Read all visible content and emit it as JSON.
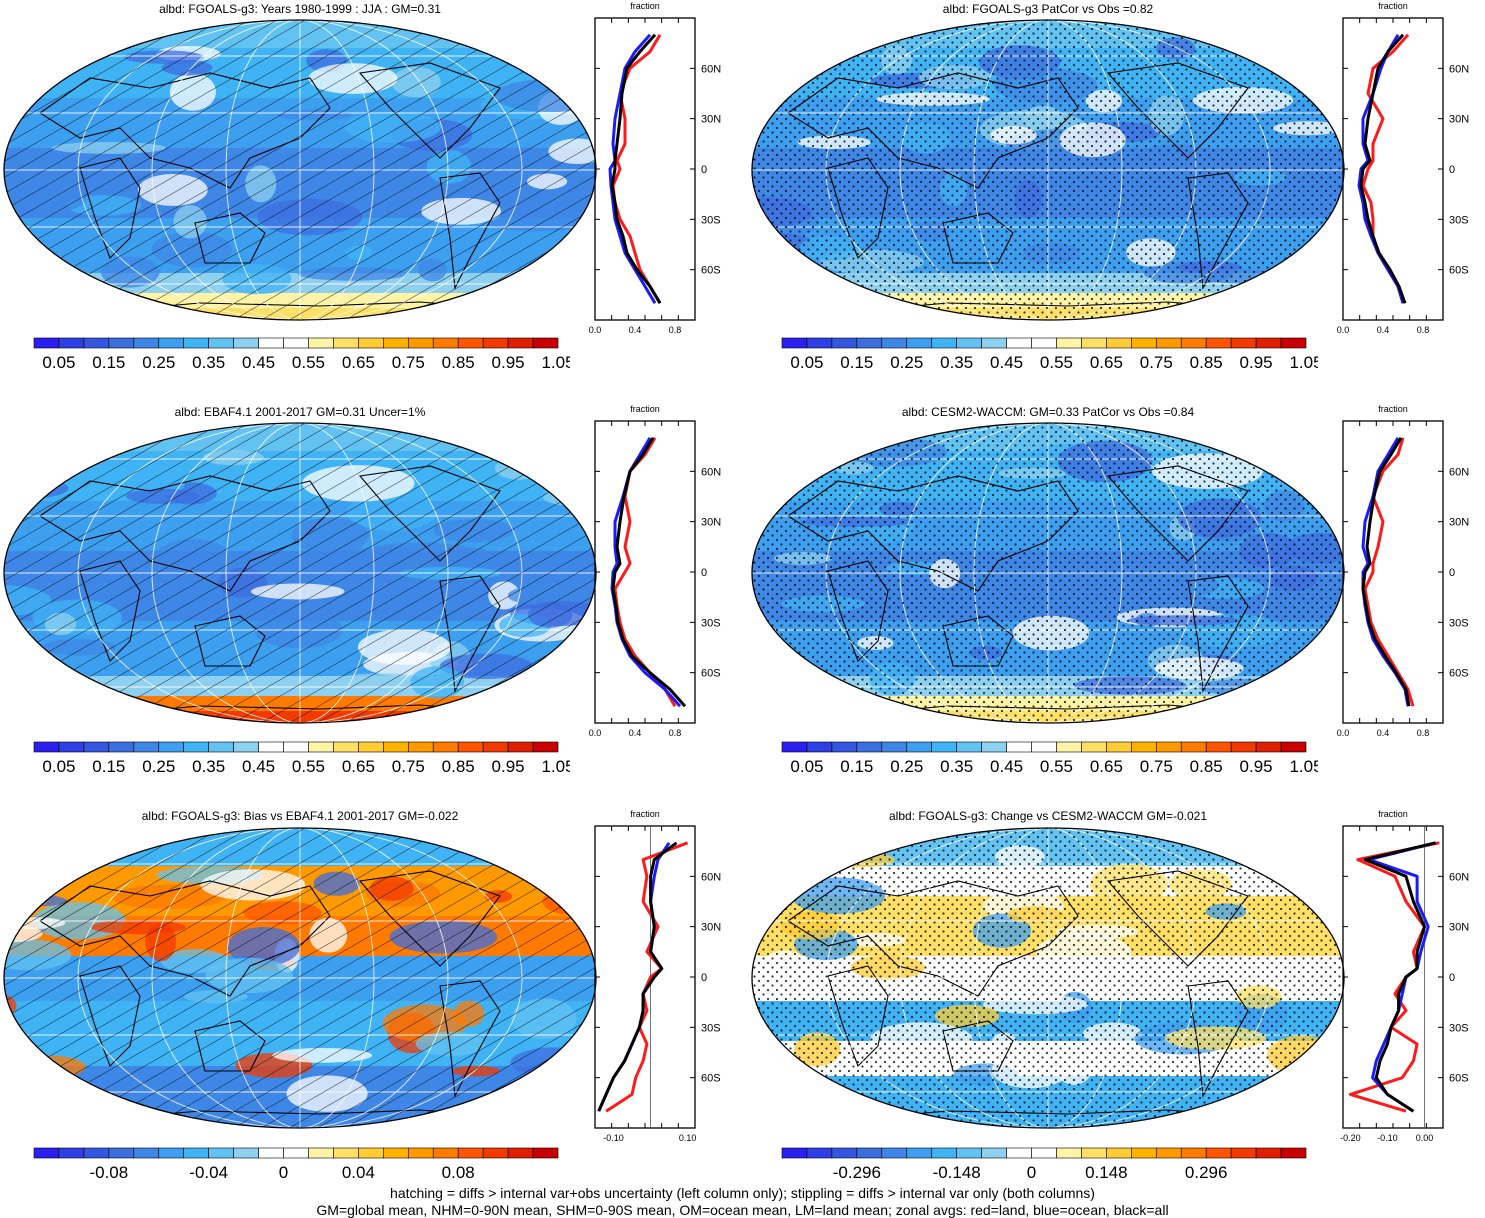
{
  "panels": [
    {
      "title": "albd: FGOALS-g3: Years 1980-1999 : JJA : GM=0.31",
      "pattern": "hatch",
      "kind": "abs",
      "variant": 0
    },
    {
      "title": "albd: FGOALS-g3 PatCor vs Obs =0.82",
      "pattern": "stipple",
      "kind": "abs",
      "variant": 1
    },
    {
      "title": "albd: EBAF4.1 2001-2017 GM=0.31 Uncer=1%",
      "pattern": "hatch",
      "kind": "abs",
      "variant": 2
    },
    {
      "title": "albd: CESM2-WACCM: GM=0.33 PatCor vs Obs =0.84",
      "pattern": "stipple",
      "kind": "abs",
      "variant": 3
    },
    {
      "title": "albd: FGOALS-g3: Bias vs EBAF4.1 2001-2017 GM=-0.022",
      "pattern": "hatch",
      "kind": "bias",
      "variant": 4
    },
    {
      "title": "albd: FGOALS-g3: Change vs CESM2-WACCM GM=-0.021",
      "pattern": "stipple",
      "kind": "change",
      "variant": 5
    }
  ],
  "colors": {
    "abs": [
      "#2b1ff0",
      "#2f3fe6",
      "#3557e0",
      "#3d6ee0",
      "#3f87e6",
      "#3d9ff0",
      "#40b3f5",
      "#62c3f2",
      "#8dd0ef",
      "#ffffff",
      "#ffffff",
      "#fff3a6",
      "#ffe066",
      "#ffcc33",
      "#ffb300",
      "#ff9900",
      "#ff7a00",
      "#ff5500",
      "#f23a00",
      "#e01f00",
      "#c80000"
    ],
    "div": [
      "#2b1ff0",
      "#2f3fe6",
      "#3557e0",
      "#3d6ee0",
      "#3f87e6",
      "#3d9ff0",
      "#40b3f5",
      "#62c3f2",
      "#8dd0ef",
      "#ffffff",
      "#ffffff",
      "#fff3a6",
      "#ffe066",
      "#ffcc33",
      "#ffb300",
      "#ff9900",
      "#ff7a00",
      "#ff5500",
      "#f23a00",
      "#e01f00",
      "#c80000"
    ],
    "land": "#ff1a1a",
    "ocean": "#1a1aff",
    "all": "#000000"
  },
  "colorbar_labels": {
    "abs": [
      "0.05",
      "0.15",
      "0.25",
      "0.35",
      "0.45",
      "0.55",
      "0.65",
      "0.75",
      "0.85",
      "0.95",
      "1.05"
    ],
    "bias": [
      "-0.08",
      "-0.04",
      "0",
      "0.04",
      "0.08"
    ],
    "change": [
      "-0.296",
      "-0.148",
      "0",
      "0.148",
      "0.296"
    ]
  },
  "zonal_axis": {
    "title": "fraction",
    "lat_labels": [
      "60N",
      "30N",
      "0",
      "30S",
      "60S"
    ],
    "x_labels_abs": [
      "0.0",
      "0.4",
      "0.8"
    ],
    "x_labels_bias": [
      "-0.10",
      "0.10"
    ],
    "x_labels_change": [
      "-0.20",
      "-0.10",
      "0.00"
    ]
  },
  "chart_data": [
    {
      "type": "heatmap",
      "title": "albd: FGOALS-g3: Years 1980-1999 : JJA : GM=0.31",
      "colorbar_ticks": [
        0.05,
        0.15,
        0.25,
        0.35,
        0.45,
        0.55,
        0.65,
        0.75,
        0.85,
        0.95,
        1.05
      ],
      "zonal": {
        "xlabel": "fraction",
        "xlim": [
          0,
          1
        ],
        "lat": [
          80,
          70,
          60,
          45,
          30,
          15,
          5,
          0,
          -10,
          -20,
          -30,
          -40,
          -50,
          -60,
          -70,
          -80
        ],
        "series": [
          {
            "name": "land",
            "values": [
              0.65,
              0.55,
              0.35,
              0.25,
              0.3,
              0.3,
              0.22,
              0.25,
              0.18,
              0.2,
              0.25,
              0.35,
              0.4,
              0.45,
              0.55,
              0.65
            ]
          },
          {
            "name": "ocean",
            "values": [
              0.55,
              0.4,
              0.3,
              0.25,
              0.2,
              0.18,
              0.2,
              0.15,
              0.16,
              0.18,
              0.2,
              0.25,
              0.3,
              0.4,
              0.5,
              0.6
            ]
          },
          {
            "name": "all",
            "values": [
              0.6,
              0.45,
              0.32,
              0.27,
              0.25,
              0.22,
              0.2,
              0.2,
              0.17,
              0.2,
              0.22,
              0.28,
              0.32,
              0.42,
              0.55,
              0.65
            ]
          }
        ]
      }
    },
    {
      "type": "heatmap",
      "title": "albd: FGOALS-g3 PatCor vs Obs =0.82",
      "colorbar_ticks": [
        0.05,
        0.15,
        0.25,
        0.35,
        0.45,
        0.55,
        0.65,
        0.75,
        0.85,
        0.95,
        1.05
      ],
      "zonal": {
        "xlabel": "fraction",
        "xlim": [
          0,
          1
        ],
        "lat": [
          80,
          70,
          60,
          45,
          30,
          15,
          5,
          0,
          -10,
          -20,
          -30,
          -40,
          -50,
          -60,
          -70,
          -80
        ],
        "series": [
          {
            "name": "land",
            "values": [
              0.65,
              0.5,
              0.3,
              0.25,
              0.4,
              0.3,
              0.3,
              0.25,
              0.2,
              0.28,
              0.3,
              0.3,
              0.35,
              0.45,
              0.55,
              0.6
            ]
          },
          {
            "name": "ocean",
            "values": [
              0.55,
              0.45,
              0.38,
              0.3,
              0.2,
              0.2,
              0.25,
              0.18,
              0.16,
              0.2,
              0.22,
              0.28,
              0.35,
              0.45,
              0.55,
              0.6
            ]
          },
          {
            "name": "all",
            "values": [
              0.6,
              0.45,
              0.35,
              0.3,
              0.25,
              0.22,
              0.27,
              0.2,
              0.18,
              0.22,
              0.25,
              0.3,
              0.36,
              0.47,
              0.56,
              0.62
            ]
          }
        ]
      }
    },
    {
      "type": "heatmap",
      "title": "albd: EBAF4.1 2001-2017 GM=0.31 Uncer=1%",
      "colorbar_ticks": [
        0.05,
        0.15,
        0.25,
        0.35,
        0.45,
        0.55,
        0.65,
        0.75,
        0.85,
        0.95,
        1.05
      ],
      "zonal": {
        "xlabel": "fraction",
        "xlim": [
          0,
          1
        ],
        "lat": [
          80,
          70,
          60,
          45,
          30,
          15,
          5,
          0,
          -10,
          -20,
          -30,
          -40,
          -50,
          -60,
          -70,
          -80
        ],
        "series": [
          {
            "name": "land",
            "values": [
              0.6,
              0.5,
              0.35,
              0.3,
              0.35,
              0.3,
              0.35,
              0.3,
              0.2,
              0.22,
              0.25,
              0.3,
              0.4,
              0.55,
              0.7,
              0.8
            ]
          },
          {
            "name": "ocean",
            "values": [
              0.55,
              0.45,
              0.35,
              0.28,
              0.2,
              0.2,
              0.22,
              0.18,
              0.17,
              0.2,
              0.22,
              0.27,
              0.35,
              0.5,
              0.7,
              0.85
            ]
          },
          {
            "name": "all",
            "values": [
              0.58,
              0.48,
              0.35,
              0.29,
              0.25,
              0.22,
              0.25,
              0.2,
              0.18,
              0.21,
              0.23,
              0.28,
              0.37,
              0.55,
              0.75,
              0.9
            ]
          }
        ]
      }
    },
    {
      "type": "heatmap",
      "title": "albd: CESM2-WACCM: GM=0.33 PatCor vs Obs =0.84",
      "colorbar_ticks": [
        0.05,
        0.15,
        0.25,
        0.35,
        0.45,
        0.55,
        0.65,
        0.75,
        0.85,
        0.95,
        1.05
      ],
      "zonal": {
        "xlabel": "fraction",
        "xlim": [
          0,
          1
        ],
        "lat": [
          80,
          70,
          60,
          45,
          30,
          15,
          5,
          0,
          -10,
          -20,
          -30,
          -40,
          -50,
          -60,
          -70,
          -80
        ],
        "series": [
          {
            "name": "land",
            "values": [
              0.6,
              0.55,
              0.4,
              0.3,
              0.4,
              0.35,
              0.3,
              0.3,
              0.22,
              0.25,
              0.28,
              0.35,
              0.45,
              0.55,
              0.65,
              0.7
            ]
          },
          {
            "name": "ocean",
            "values": [
              0.55,
              0.45,
              0.35,
              0.3,
              0.22,
              0.2,
              0.25,
              0.2,
              0.2,
              0.22,
              0.25,
              0.3,
              0.4,
              0.52,
              0.62,
              0.65
            ]
          },
          {
            "name": "all",
            "values": [
              0.58,
              0.48,
              0.37,
              0.31,
              0.27,
              0.24,
              0.27,
              0.22,
              0.2,
              0.23,
              0.26,
              0.32,
              0.42,
              0.53,
              0.63,
              0.66
            ]
          }
        ]
      }
    },
    {
      "type": "heatmap",
      "title": "albd: FGOALS-g3: Bias vs EBAF4.1 2001-2017 GM=-0.022",
      "colorbar_ticks": [
        -0.08,
        -0.04,
        0,
        0.04,
        0.08
      ],
      "zonal": {
        "xlabel": "fraction",
        "xlim": [
          -0.15,
          0.12
        ],
        "lat": [
          80,
          70,
          60,
          45,
          30,
          15,
          5,
          0,
          -10,
          -20,
          -30,
          -40,
          -50,
          -60,
          -70,
          -80
        ],
        "series": [
          {
            "name": "land",
            "values": [
              0.1,
              -0.02,
              -0.01,
              -0.02,
              0.02,
              -0.01,
              0.03,
              0.0,
              -0.02,
              -0.01,
              -0.03,
              -0.01,
              -0.02,
              -0.04,
              -0.05,
              -0.12
            ]
          },
          {
            "name": "ocean",
            "values": [
              0.05,
              0.02,
              0.01,
              0.0,
              0.01,
              0.0,
              0.03,
              0.01,
              -0.02,
              -0.02,
              -0.03,
              -0.05,
              -0.07,
              -0.1,
              -0.12,
              -0.14
            ]
          },
          {
            "name": "all",
            "values": [
              0.07,
              0.01,
              0.0,
              0.0,
              0.01,
              0.0,
              0.03,
              0.01,
              -0.02,
              -0.02,
              -0.03,
              -0.05,
              -0.07,
              -0.1,
              -0.12,
              -0.14
            ]
          }
        ]
      }
    },
    {
      "type": "heatmap",
      "title": "albd: FGOALS-g3: Change vs CESM2-WACCM GM=-0.021",
      "colorbar_ticks": [
        -0.296,
        -0.148,
        0,
        0.148,
        0.296
      ],
      "zonal": {
        "xlabel": "fraction",
        "xlim": [
          -0.22,
          0.05
        ],
        "lat": [
          80,
          70,
          60,
          45,
          30,
          15,
          5,
          0,
          -10,
          -20,
          -30,
          -40,
          -50,
          -60,
          -70,
          -80
        ],
        "series": [
          {
            "name": "land",
            "values": [
              0.04,
              -0.18,
              -0.08,
              -0.05,
              0.0,
              -0.03,
              -0.02,
              -0.05,
              -0.08,
              -0.05,
              -0.09,
              -0.02,
              -0.03,
              -0.06,
              -0.2,
              -0.05
            ]
          },
          {
            "name": "ocean",
            "values": [
              0.03,
              -0.15,
              -0.02,
              -0.02,
              0.01,
              -0.01,
              -0.02,
              -0.05,
              -0.06,
              -0.07,
              -0.09,
              -0.11,
              -0.13,
              -0.14,
              -0.1,
              -0.03
            ]
          },
          {
            "name": "all",
            "values": [
              0.03,
              -0.16,
              -0.05,
              -0.03,
              0.0,
              -0.02,
              -0.02,
              -0.05,
              -0.07,
              -0.07,
              -0.09,
              -0.1,
              -0.12,
              -0.13,
              -0.1,
              -0.03
            ]
          }
        ]
      }
    }
  ],
  "footer": {
    "line1": "hatching = diffs > internal var+obs uncertainty (left column only); stippling = diffs > internal var only (both columns)",
    "line2": "GM=global mean, NHM=0-90N mean, SHM=0-90S mean, OM=ocean mean, LM=land mean; zonal avgs: red=land, blue=ocean, black=all"
  }
}
